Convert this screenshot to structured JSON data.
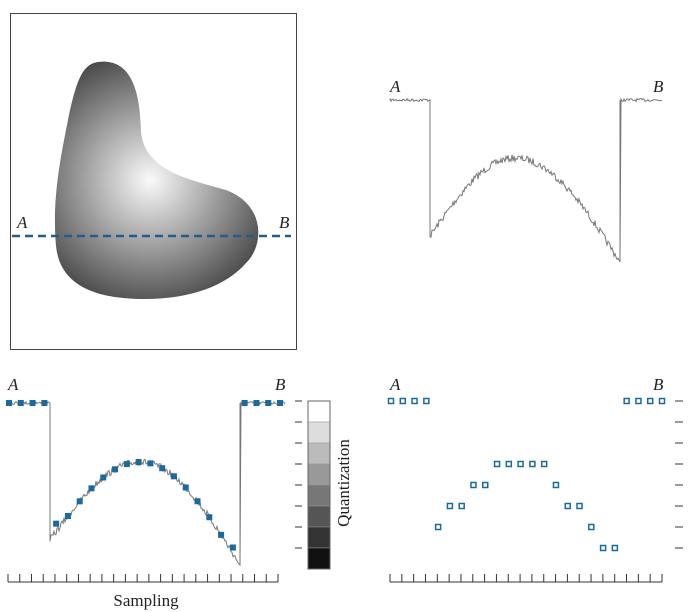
{
  "image_panel": {
    "start_label": "A",
    "end_label": "B"
  },
  "profile_panel": {
    "start_label": "A",
    "end_label": "B"
  },
  "sampled_panel": {
    "start_label": "A",
    "end_label": "B",
    "quantization_label": "Quantization",
    "sampling_label": "Sampling"
  },
  "quantized_panel": {
    "start_label": "A",
    "end_label": "B"
  }
}
